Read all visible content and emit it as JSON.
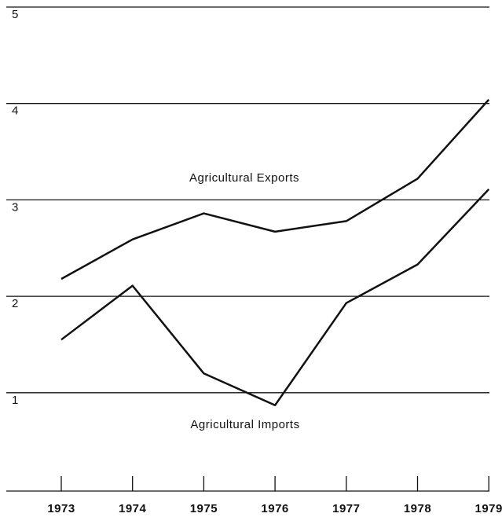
{
  "chart_data": {
    "type": "line",
    "categories": [
      "1973",
      "1974",
      "1975",
      "1976",
      "1977",
      "1978",
      "1979"
    ],
    "series": [
      {
        "name": "Agricultural Exports",
        "color": "#111111",
        "values": [
          2.18,
          2.59,
          2.86,
          2.67,
          2.78,
          3.22,
          4.04
        ]
      },
      {
        "name": "Agricultural Imports",
        "color": "#111111",
        "values": [
          1.55,
          2.11,
          1.2,
          0.87,
          1.93,
          2.33,
          3.11
        ]
      }
    ],
    "ylim": [
      0,
      5
    ],
    "yticks": [
      1,
      2,
      3,
      4,
      5
    ],
    "grid": true
  }
}
